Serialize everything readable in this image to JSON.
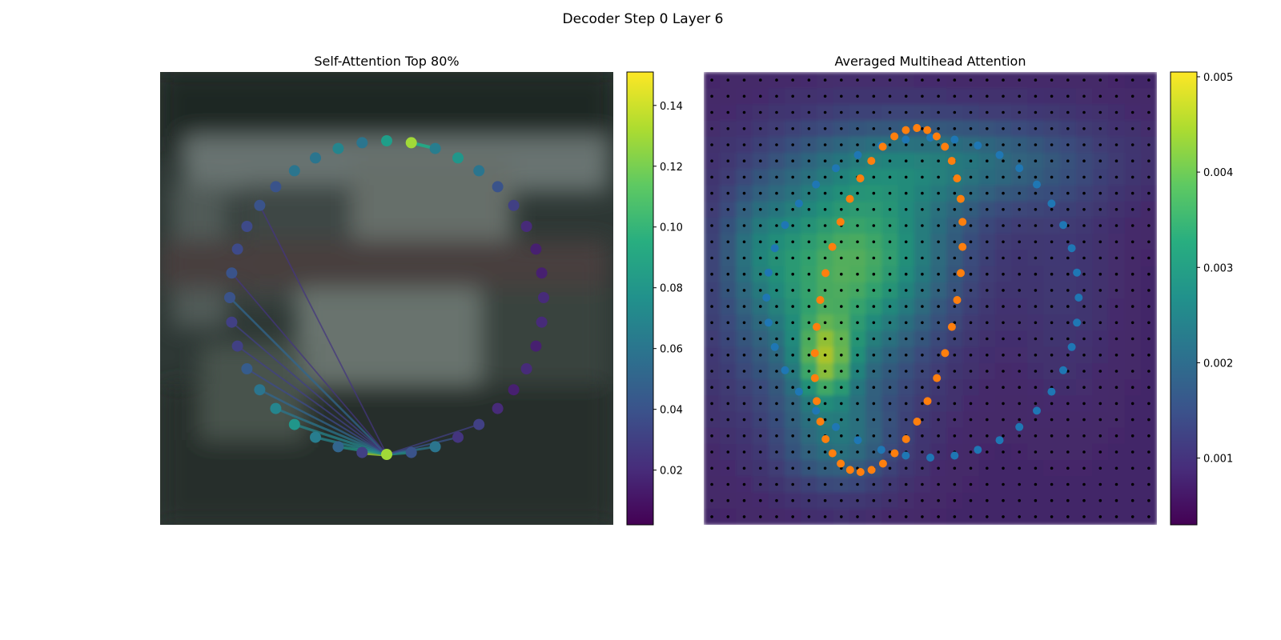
{
  "suptitle": "Decoder Step 0 Layer 6",
  "chart_data": [
    {
      "type": "scatter",
      "title": "Self-Attention Top 80%",
      "description_of_marks": "ring of contour points colored by attention weight; lines from the bottom query point to attended points",
      "colormap": "viridis",
      "colorbar": {
        "range": [
          0.002,
          0.151
        ],
        "ticks": [
          0.02,
          0.04,
          0.06,
          0.08,
          0.1,
          0.12,
          0.14
        ],
        "tick_labels": [
          "0.02",
          "0.04",
          "0.06",
          "0.08",
          "0.10",
          "0.12",
          "0.14"
        ]
      },
      "num_points": 40,
      "point_weights": [
        0.085,
        0.13,
        0.065,
        0.08,
        0.06,
        0.04,
        0.03,
        0.02,
        0.015,
        0.015,
        0.02,
        0.02,
        0.015,
        0.02,
        0.015,
        0.02,
        0.03,
        0.025,
        0.06,
        0.04,
        0.13,
        0.03,
        0.05,
        0.065,
        0.08,
        0.07,
        0.06,
        0.045,
        0.03,
        0.03,
        0.04,
        0.04,
        0.035,
        0.035,
        0.04,
        0.04,
        0.06,
        0.06,
        0.07,
        0.06
      ],
      "query_point_index": 20,
      "attention_lines": [
        {
          "to": 21,
          "weight": 0.13
        },
        {
          "to": 22,
          "weight": 0.08
        },
        {
          "to": 23,
          "weight": 0.07
        },
        {
          "to": 24,
          "weight": 0.07
        },
        {
          "to": 25,
          "weight": 0.06
        },
        {
          "to": 26,
          "weight": 0.05
        },
        {
          "to": 27,
          "weight": 0.035
        },
        {
          "to": 28,
          "weight": 0.03
        },
        {
          "to": 29,
          "weight": 0.03
        },
        {
          "to": 30,
          "weight": 0.05
        },
        {
          "to": 31,
          "weight": 0.025
        },
        {
          "to": 34,
          "weight": 0.025
        },
        {
          "to": 19,
          "weight": 0.08
        },
        {
          "to": 18,
          "weight": 0.06
        },
        {
          "to": 17,
          "weight": 0.04
        },
        {
          "to": 16,
          "weight": 0.03
        }
      ],
      "top_point_link": {
        "from": 1,
        "to": 2,
        "weight": 0.09
      }
    },
    {
      "type": "heatmap",
      "title": "Averaged Multihead Attention",
      "colormap": "viridis",
      "colorbar": {
        "range": [
          0.0003,
          0.00505
        ],
        "ticks": [
          0.001,
          0.002,
          0.003,
          0.004,
          0.005
        ],
        "tick_labels": [
          "0.001",
          "0.002",
          "0.003",
          "0.004",
          "0.005"
        ]
      },
      "grid": {
        "rows": 28,
        "cols": 28
      },
      "series": [
        {
          "name": "blue contour",
          "color": "#1f77b4",
          "num_points": 40
        },
        {
          "name": "orange contour",
          "color": "#ff7f0e",
          "num_points": 40
        }
      ],
      "reference_points_color": "#000000"
    }
  ],
  "colors": {
    "blue_series": "#1f77b4",
    "orange_series": "#ff7f0e",
    "image_bg": "#2e3835"
  }
}
